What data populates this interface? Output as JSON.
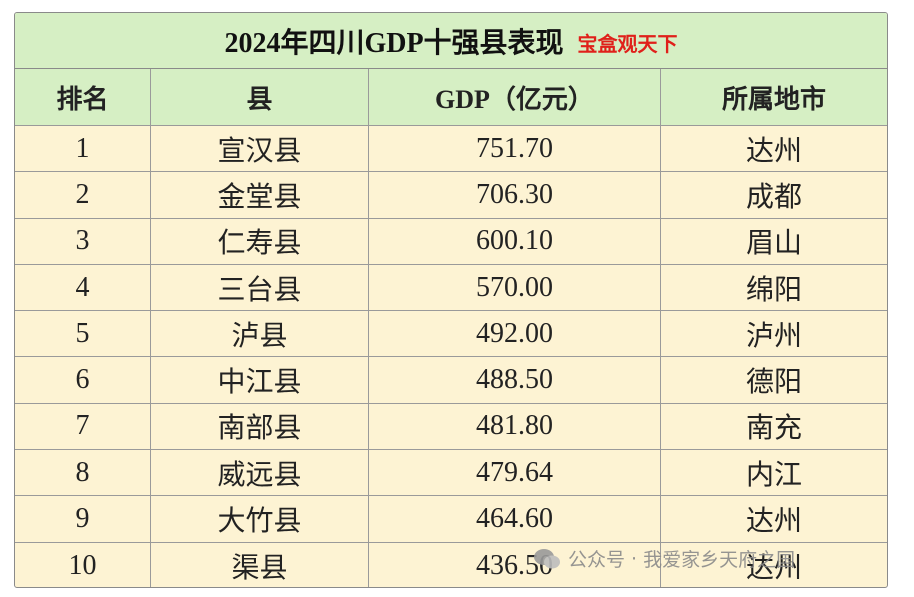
{
  "header": {
    "title": "2024年四川GDP十强县表现",
    "subtitle": "宝盒观天下"
  },
  "table": {
    "columns": [
      "排名",
      "县",
      "GDP（亿元）",
      "所属地市"
    ],
    "rows": [
      [
        "1",
        "宣汉县",
        "751.70",
        "达州"
      ],
      [
        "2",
        "金堂县",
        "706.30",
        "成都"
      ],
      [
        "3",
        "仁寿县",
        "600.10",
        "眉山"
      ],
      [
        "4",
        "三台县",
        "570.00",
        "绵阳"
      ],
      [
        "5",
        "泸县",
        "492.00",
        "泸州"
      ],
      [
        "6",
        "中江县",
        "488.50",
        "德阳"
      ],
      [
        "7",
        "南部县",
        "481.80",
        "南充"
      ],
      [
        "8",
        "威远县",
        "479.64",
        "内江"
      ],
      [
        "9",
        "大竹县",
        "464.60",
        "达州"
      ],
      [
        "10",
        "渠县",
        "436.50",
        "达州"
      ]
    ]
  },
  "watermark": {
    "source": "公众号",
    "name": "我爱家乡天府之国"
  }
}
